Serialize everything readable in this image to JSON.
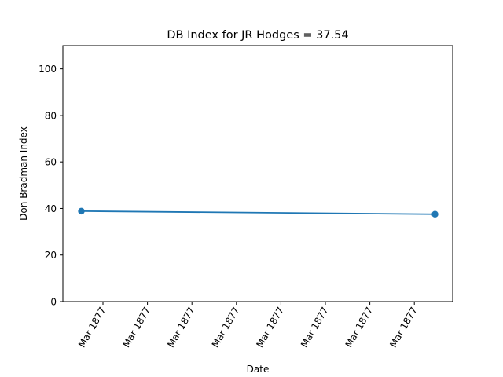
{
  "chart_data": {
    "type": "line",
    "title": "DB Index for JR Hodges = 37.54",
    "xlabel": "Date",
    "ylabel": "Don Bradman Index",
    "ylim": [
      0,
      110
    ],
    "yticks": [
      0,
      20,
      40,
      60,
      80,
      100
    ],
    "xtick_labels": [
      "Mar 1877",
      "Mar 1877",
      "Mar 1877",
      "Mar 1877",
      "Mar 1877",
      "Mar 1877",
      "Mar 1877",
      "Mar 1877"
    ],
    "grid": false,
    "legend": "none",
    "series": [
      {
        "color": "#1f77b4",
        "marker": "circle",
        "points": [
          {
            "x": "1877-03-15",
            "y": 38.85
          },
          {
            "x": "1877-03-19",
            "y": 37.54
          }
        ]
      }
    ]
  }
}
